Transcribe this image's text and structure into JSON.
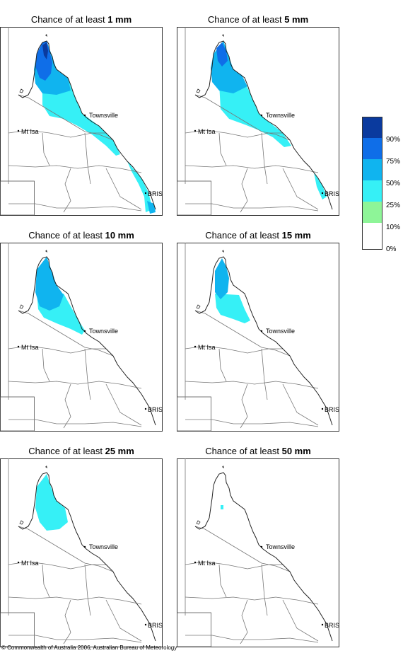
{
  "panels": [
    {
      "prefix": "Chance of at least ",
      "amount": "1 mm"
    },
    {
      "prefix": "Chance of at least ",
      "amount": "5 mm"
    },
    {
      "prefix": "Chance of at least ",
      "amount": "10 mm"
    },
    {
      "prefix": "Chance of at least ",
      "amount": "15 mm"
    },
    {
      "prefix": "Chance of at least ",
      "amount": "25 mm"
    },
    {
      "prefix": "Chance of at least ",
      "amount": "50 mm"
    }
  ],
  "places": {
    "townsville": "Townsville",
    "mt_isa": "Mt Isa",
    "brisbane": "BRIS"
  },
  "legend": {
    "labels": [
      "90%",
      "75%",
      "50%",
      "25%",
      "10%",
      "0%"
    ],
    "colors": [
      "#0a3a9e",
      "#0f6ee8",
      "#10b4ef",
      "#36f0f6",
      "#8ef598",
      "#ffffff"
    ]
  },
  "copyright": "© Commonwealth of Australia 2006, Australian Bureau of Meteorology"
}
